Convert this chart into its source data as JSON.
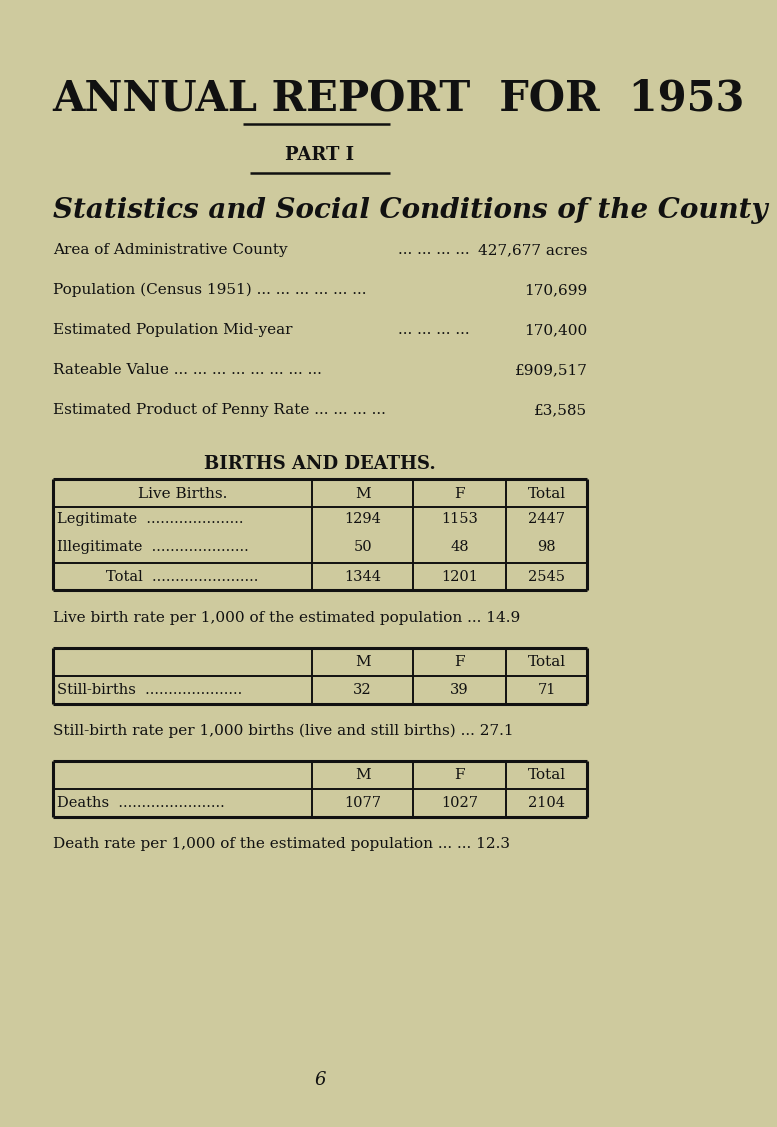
{
  "bg_color": "#ceca9e",
  "text_color": "#111111",
  "title": "ANNUAL REPORT  FOR  1953",
  "part": "PART I",
  "subtitle": "Statistics and Social Conditions of the County",
  "stats": [
    {
      "label": "Area of Administrative County",
      "dots": "...  ...  ...  ...",
      "value": "427,677 acres"
    },
    {
      "label": "Population (Census 1951) ...  ...  ...  ...  ...  ...",
      "dots": "",
      "value": "170,699"
    },
    {
      "label": "Estimated Population Mid-year",
      "dots": "...  ...  ...  ...",
      "value": "170,400"
    },
    {
      "label": "Rateable Value   ...  ...  ...  ...  ...  ...  ...  ...",
      "dots": "",
      "value": "£909,517"
    },
    {
      "label": "Estimated Product of Penny Rate ...  ...  ...  ...",
      "dots": "",
      "value": "£3,585"
    }
  ],
  "section_title": "BIRTHS AND DEATHS.",
  "birth_rate_text": "Live birth rate per 1,000 of the estimated population ... 14.9",
  "still_birth_rate_text": "Still-birth rate per 1,000 births (live and still births) ... 27.1",
  "death_rate_text": "Death rate per 1,000 of the estimated population ... ... 12.3",
  "footer": "6"
}
